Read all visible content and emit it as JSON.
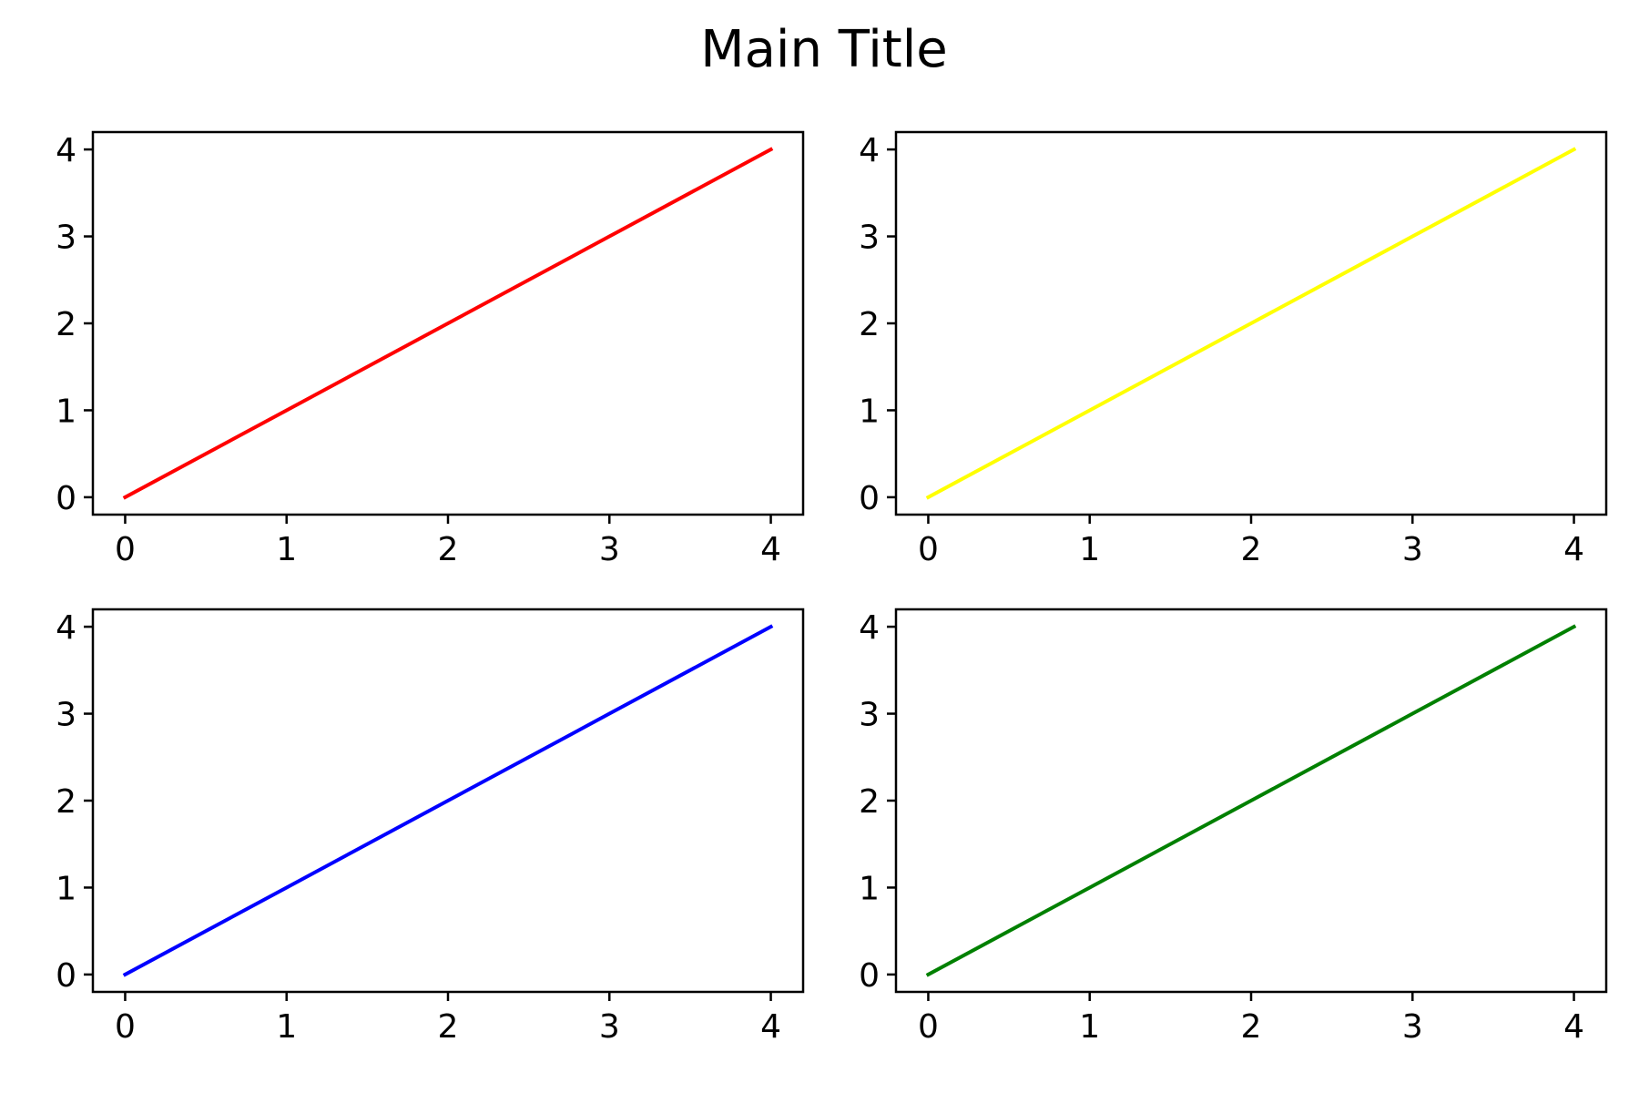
{
  "figure": {
    "title": "Main Title"
  },
  "chart_data": [
    {
      "type": "line",
      "title": "",
      "xlabel": "",
      "ylabel": "",
      "xlim": [
        -0.2,
        4.2
      ],
      "ylim": [
        -0.2,
        4.2
      ],
      "x_ticks": [
        0,
        1,
        2,
        3,
        4
      ],
      "y_ticks": [
        0,
        1,
        2,
        3,
        4
      ],
      "grid": false,
      "series": [
        {
          "x": [
            0,
            1,
            2,
            3,
            4
          ],
          "y": [
            0,
            1,
            2,
            3,
            4
          ],
          "color": "#ff0000"
        }
      ]
    },
    {
      "type": "line",
      "title": "",
      "xlabel": "",
      "ylabel": "",
      "xlim": [
        -0.2,
        4.2
      ],
      "ylim": [
        -0.2,
        4.2
      ],
      "x_ticks": [
        0,
        1,
        2,
        3,
        4
      ],
      "y_ticks": [
        0,
        1,
        2,
        3,
        4
      ],
      "grid": false,
      "series": [
        {
          "x": [
            0,
            1,
            2,
            3,
            4
          ],
          "y": [
            0,
            1,
            2,
            3,
            4
          ],
          "color": "#ffff00"
        }
      ]
    },
    {
      "type": "line",
      "title": "",
      "xlabel": "",
      "ylabel": "",
      "xlim": [
        -0.2,
        4.2
      ],
      "ylim": [
        -0.2,
        4.2
      ],
      "x_ticks": [
        0,
        1,
        2,
        3,
        4
      ],
      "y_ticks": [
        0,
        1,
        2,
        3,
        4
      ],
      "grid": false,
      "series": [
        {
          "x": [
            0,
            1,
            2,
            3,
            4
          ],
          "y": [
            0,
            1,
            2,
            3,
            4
          ],
          "color": "#0000ff"
        }
      ]
    },
    {
      "type": "line",
      "title": "",
      "xlabel": "",
      "ylabel": "",
      "xlim": [
        -0.2,
        4.2
      ],
      "ylim": [
        -0.2,
        4.2
      ],
      "x_ticks": [
        0,
        1,
        2,
        3,
        4
      ],
      "y_ticks": [
        0,
        1,
        2,
        3,
        4
      ],
      "grid": false,
      "series": [
        {
          "x": [
            0,
            1,
            2,
            3,
            4
          ],
          "y": [
            0,
            1,
            2,
            3,
            4
          ],
          "color": "#008000"
        }
      ]
    }
  ]
}
